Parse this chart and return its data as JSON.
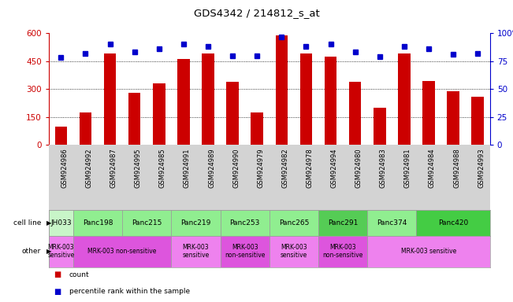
{
  "title": "GDS4342 / 214812_s_at",
  "samples": [
    "GSM924986",
    "GSM924992",
    "GSM924987",
    "GSM924995",
    "GSM924985",
    "GSM924991",
    "GSM924989",
    "GSM924990",
    "GSM924979",
    "GSM924982",
    "GSM924978",
    "GSM924994",
    "GSM924980",
    "GSM924983",
    "GSM924981",
    "GSM924984",
    "GSM924988",
    "GSM924993"
  ],
  "counts": [
    100,
    175,
    490,
    280,
    330,
    460,
    490,
    340,
    175,
    590,
    490,
    475,
    340,
    200,
    490,
    345,
    290,
    260
  ],
  "percentiles": [
    78,
    82,
    90,
    83,
    86,
    90,
    88,
    80,
    80,
    97,
    88,
    90,
    83,
    79,
    88,
    86,
    81,
    82
  ],
  "cell_lines": [
    {
      "name": "JH033",
      "start": 0,
      "end": 1,
      "color": "#c8f5c8"
    },
    {
      "name": "Panc198",
      "start": 1,
      "end": 3,
      "color": "#90ee90"
    },
    {
      "name": "Panc215",
      "start": 3,
      "end": 5,
      "color": "#90ee90"
    },
    {
      "name": "Panc219",
      "start": 5,
      "end": 7,
      "color": "#90ee90"
    },
    {
      "name": "Panc253",
      "start": 7,
      "end": 9,
      "color": "#90ee90"
    },
    {
      "name": "Panc265",
      "start": 9,
      "end": 11,
      "color": "#90ee90"
    },
    {
      "name": "Panc291",
      "start": 11,
      "end": 13,
      "color": "#55cc55"
    },
    {
      "name": "Panc374",
      "start": 13,
      "end": 15,
      "color": "#90ee90"
    },
    {
      "name": "Panc420",
      "start": 15,
      "end": 18,
      "color": "#44cc44"
    }
  ],
  "other_groups": [
    {
      "label": "MRK-003\nsensitive",
      "start": 0,
      "end": 1,
      "color": "#ee82ee"
    },
    {
      "label": "MRK-003 non-sensitive",
      "start": 1,
      "end": 5,
      "color": "#dd55dd"
    },
    {
      "label": "MRK-003\nsensitive",
      "start": 5,
      "end": 7,
      "color": "#ee82ee"
    },
    {
      "label": "MRK-003\nnon-sensitive",
      "start": 7,
      "end": 9,
      "color": "#dd55dd"
    },
    {
      "label": "MRK-003\nsensitive",
      "start": 9,
      "end": 11,
      "color": "#ee82ee"
    },
    {
      "label": "MRK-003\nnon-sensitive",
      "start": 11,
      "end": 13,
      "color": "#dd55dd"
    },
    {
      "label": "MRK-003 sensitive",
      "start": 13,
      "end": 18,
      "color": "#ee82ee"
    }
  ],
  "ylim_left": [
    0,
    600
  ],
  "ylim_right": [
    0,
    100
  ],
  "yticks_left": [
    0,
    150,
    300,
    450,
    600
  ],
  "yticks_right": [
    0,
    25,
    50,
    75,
    100
  ],
  "bar_color": "#cc0000",
  "dot_color": "#0000cc",
  "gray_bg": "#d3d3d3"
}
